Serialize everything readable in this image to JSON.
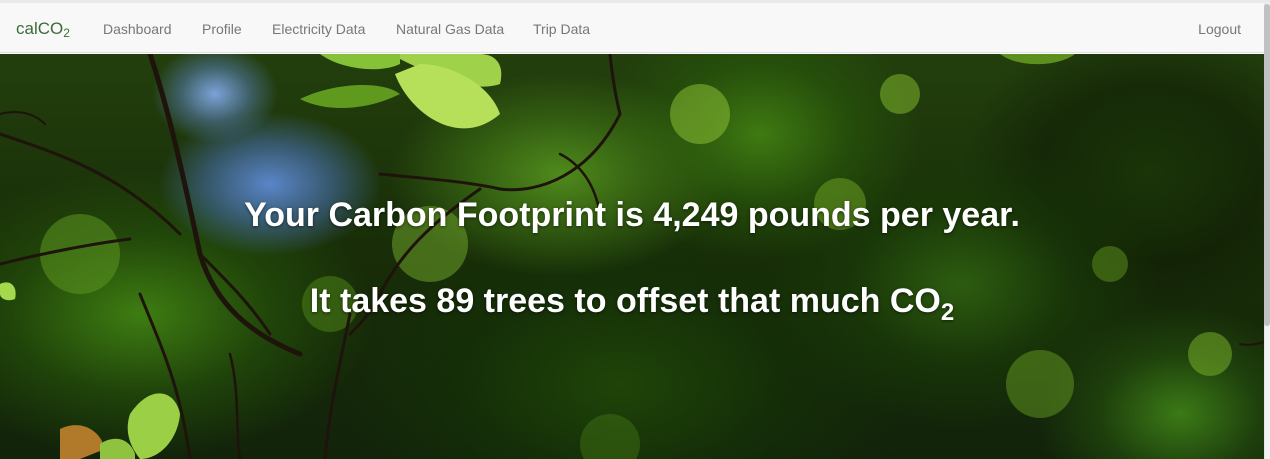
{
  "navbar": {
    "brand_prefix": "calCO",
    "brand_subscript": "2",
    "links": [
      {
        "label": "Dashboard"
      },
      {
        "label": "Profile"
      },
      {
        "label": "Electricity Data"
      },
      {
        "label": "Natural Gas Data"
      },
      {
        "label": "Trip Data"
      }
    ],
    "logout_label": "Logout"
  },
  "hero": {
    "footprint_text": "Your Carbon Footprint is 4,249 pounds per year.",
    "trees_text_prefix": "It takes 89 trees to offset that much CO",
    "trees_text_subscript": "2"
  },
  "colors": {
    "navbar_background": "#f8f8f8",
    "brand_color": "#3c6b3a",
    "nav_link_color": "#777777",
    "hero_text_color": "#ffffff"
  },
  "icons": {
    "hero_background": "forest-canopy-photo"
  }
}
